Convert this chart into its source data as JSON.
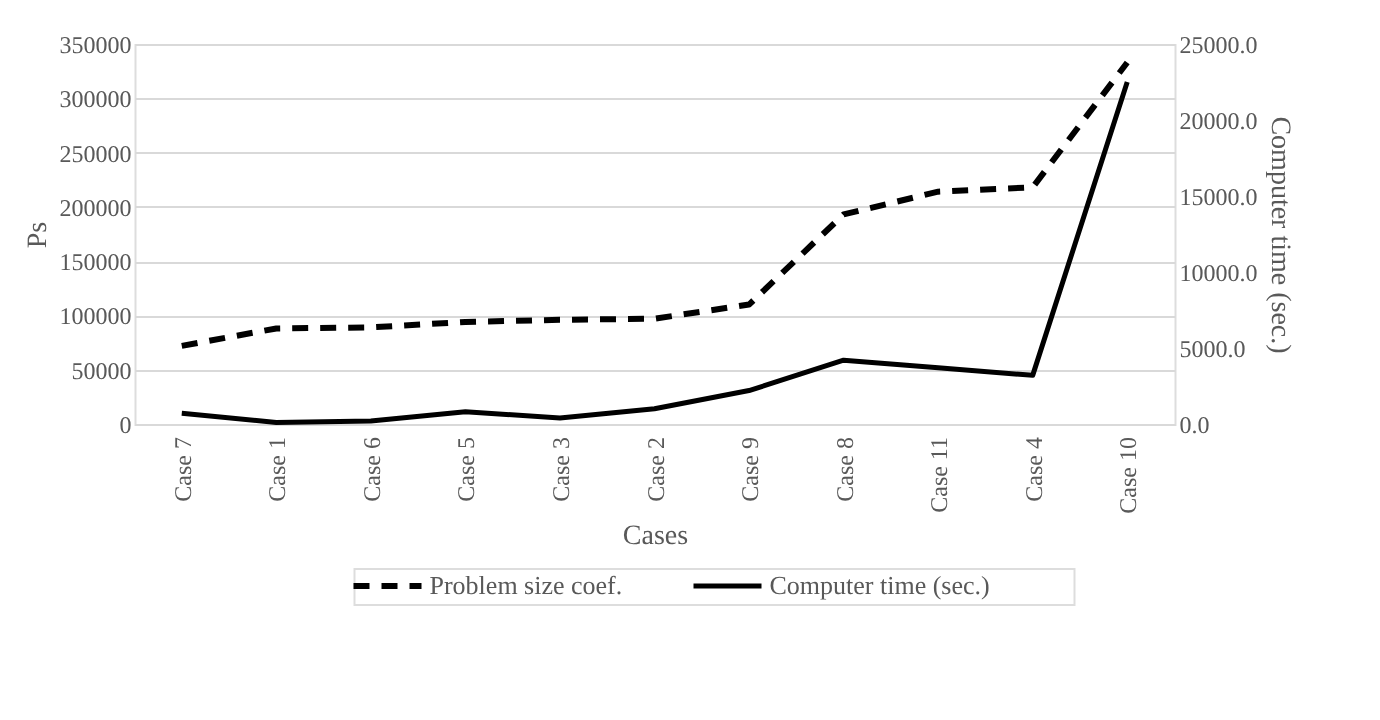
{
  "chart_data": {
    "type": "line",
    "xlabel": "Cases",
    "ylabel": "Ps",
    "y2label": "Computer time (sec.)",
    "categories": [
      "Case 7",
      "Case 1",
      "Case 6",
      "Case 5",
      "Case 3",
      "Case 2",
      "Case 9",
      "Case 8",
      "Case 11",
      "Case 4",
      "Case 10"
    ],
    "series": [
      {
        "name": "Problem size coef.",
        "color": "#000000",
        "line_style": "dashed",
        "values": [
          72000,
          88000,
          89000,
          94000,
          96000,
          97000,
          110000,
          193000,
          214000,
          218000,
          333000
        ]
      },
      {
        "name": "Computer time (sec.)",
        "color": "#000000",
        "line_style": "solid",
        "axis": "y2",
        "values": [
          700,
          100,
          200,
          800,
          400,
          1000,
          2200,
          4200,
          3700,
          3200,
          22500
        ]
      }
    ],
    "ylim": [
      0,
      350000
    ],
    "yticks": [
      0,
      50000,
      100000,
      150000,
      200000,
      250000,
      300000,
      350000
    ],
    "y2lim": [
      0,
      25000
    ],
    "y2ticks": [
      {
        "value": 0,
        "label": "0.0"
      },
      {
        "value": 5000,
        "label": "5000.0"
      },
      {
        "value": 10000,
        "label": "10000.0"
      },
      {
        "value": 15000,
        "label": "15000.0"
      },
      {
        "value": 20000,
        "label": "20000.0"
      },
      {
        "value": 25000,
        "label": "25000.0"
      }
    ],
    "grid": "y",
    "legend": "bottom",
    "marker": "none"
  }
}
